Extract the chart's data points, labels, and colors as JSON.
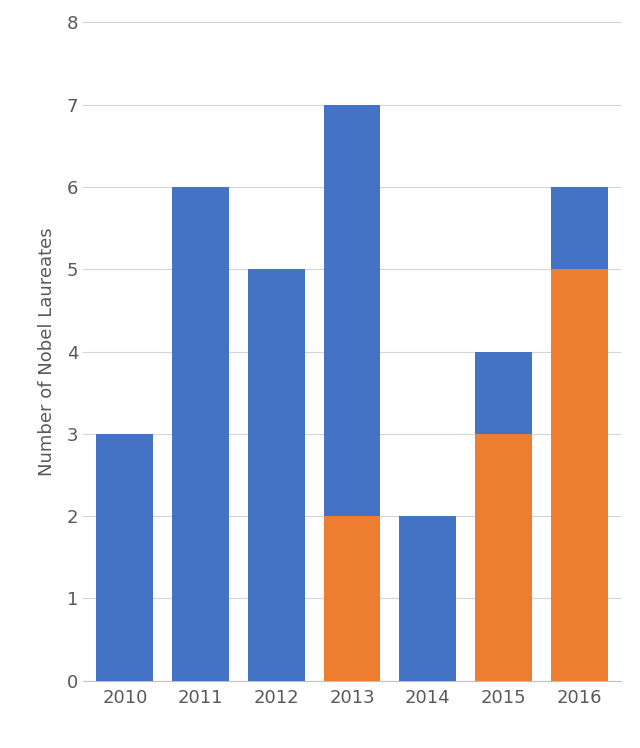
{
  "years": [
    "2010",
    "2011",
    "2012",
    "2013",
    "2014",
    "2015",
    "2016"
  ],
  "native_born": [
    3,
    6,
    5,
    5,
    2,
    1,
    1
  ],
  "foreign_born": [
    0,
    0,
    0,
    2,
    0,
    3,
    5
  ],
  "native_color": "#4472C4",
  "foreign_color": "#ED7D31",
  "ylabel": "Number of Nobel Laureates",
  "ylim": [
    0,
    8
  ],
  "yticks": [
    0,
    1,
    2,
    3,
    4,
    5,
    6,
    7,
    8
  ],
  "background_color": "#ffffff",
  "grid_color": "#d5d5d5",
  "bar_width": 0.75,
  "tick_fontsize": 13,
  "ylabel_fontsize": 13,
  "tick_color": "#595959",
  "spine_color": "#c0c0c0"
}
